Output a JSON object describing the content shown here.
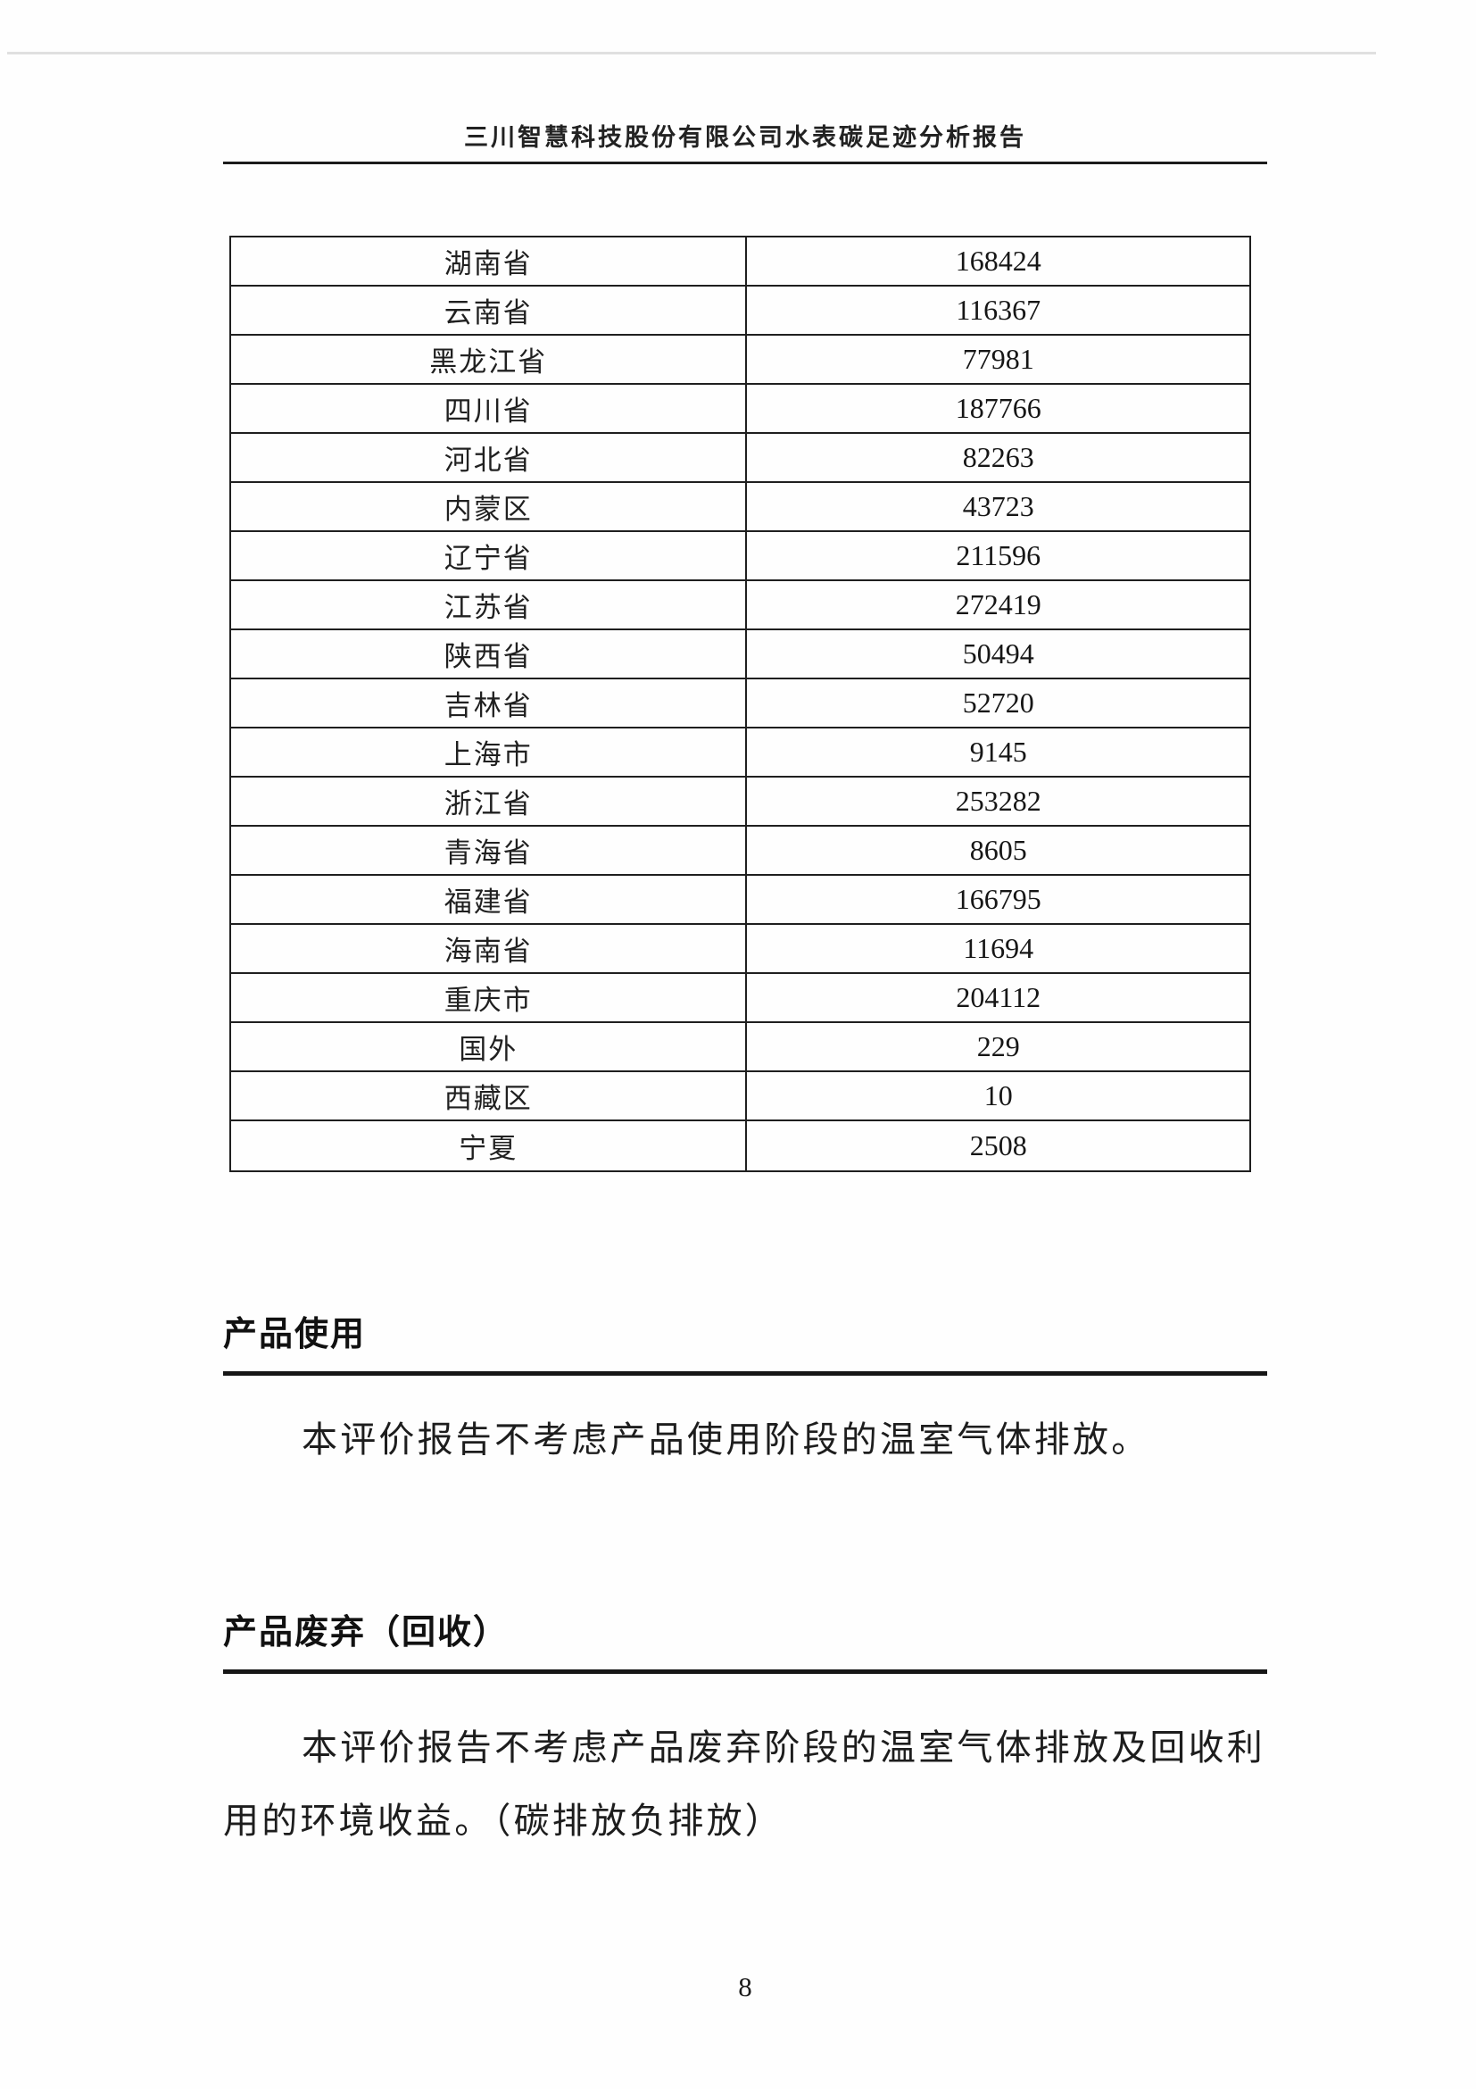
{
  "header": {
    "title": "三川智慧科技股份有限公司水表碳足迹分析报告"
  },
  "table": {
    "rows": [
      {
        "region": "湖南省",
        "value": "168424"
      },
      {
        "region": "云南省",
        "value": "116367"
      },
      {
        "region": "黑龙江省",
        "value": "77981"
      },
      {
        "region": "四川省",
        "value": "187766"
      },
      {
        "region": "河北省",
        "value": "82263"
      },
      {
        "region": "内蒙区",
        "value": "43723"
      },
      {
        "region": "辽宁省",
        "value": "211596"
      },
      {
        "region": "江苏省",
        "value": "272419"
      },
      {
        "region": "陕西省",
        "value": "50494"
      },
      {
        "region": "吉林省",
        "value": "52720"
      },
      {
        "region": "上海市",
        "value": "9145"
      },
      {
        "region": "浙江省",
        "value": "253282"
      },
      {
        "region": "青海省",
        "value": "8605"
      },
      {
        "region": "福建省",
        "value": "166795"
      },
      {
        "region": "海南省",
        "value": "11694"
      },
      {
        "region": "重庆市",
        "value": "204112"
      },
      {
        "region": "国外",
        "value": "229"
      },
      {
        "region": "西藏区",
        "value": "10"
      },
      {
        "region": "宁夏",
        "value": "2508"
      }
    ]
  },
  "sections": [
    {
      "heading": "产品使用",
      "paragraphs": [
        "本评价报告不考虑产品使用阶段的温室气体排放。"
      ]
    },
    {
      "heading": "产品废弃（回收）",
      "paragraphs": [
        "本评价报告不考虑产品废弃阶段的温室气体排放及回收利用的环境收益。（碳排放负排放）"
      ]
    }
  ],
  "footer": {
    "page_number": "8"
  }
}
